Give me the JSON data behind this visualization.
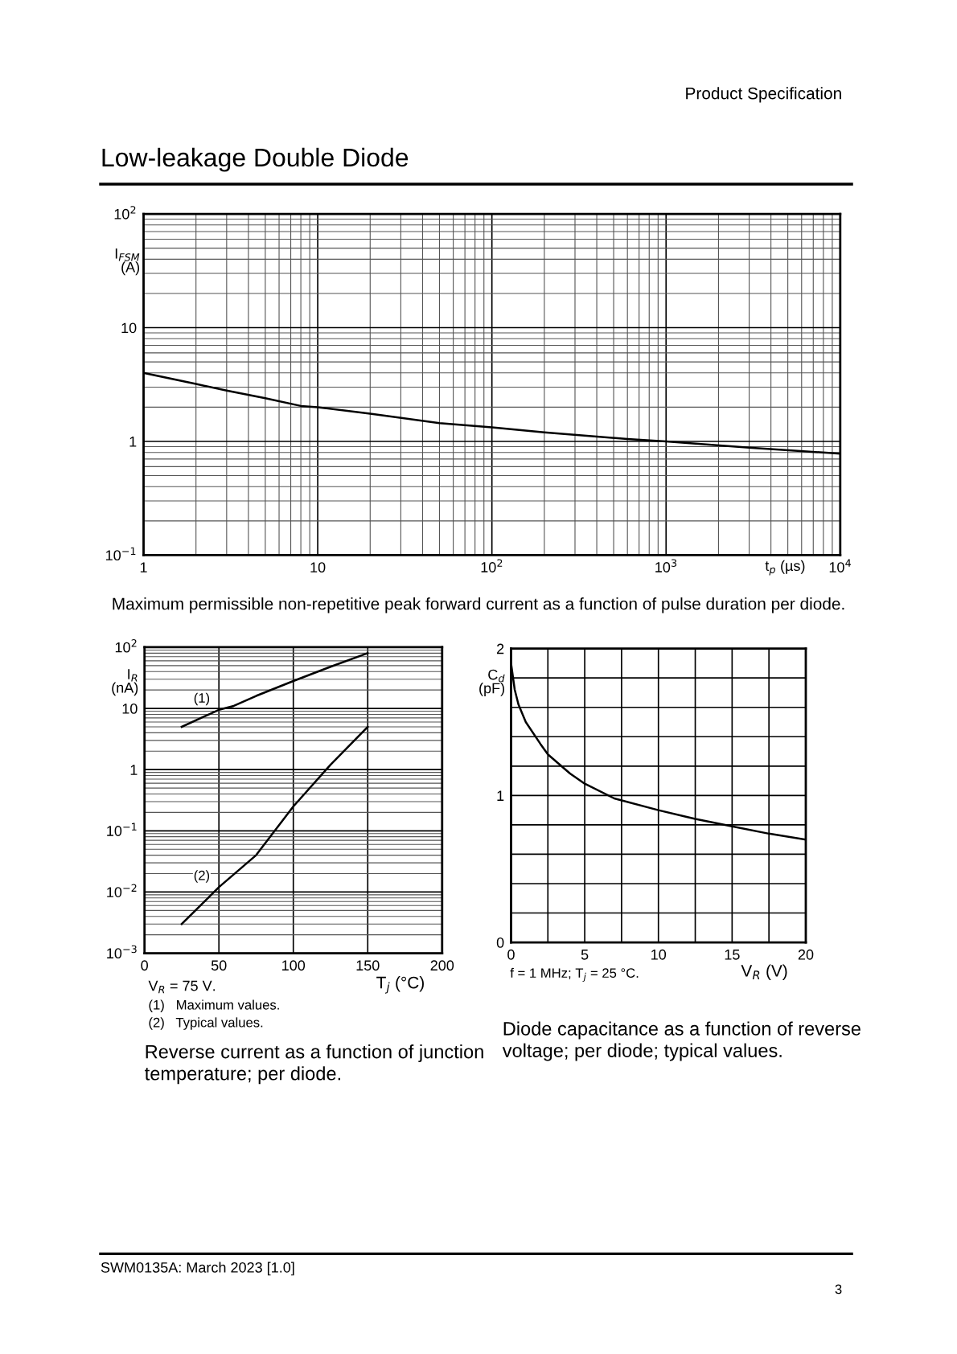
{
  "chart_data": [
    {
      "type": "line",
      "xlabel": "t$_{p}$ (µs)",
      "ylabel": "I$_{FSM}$\n(A)",
      "log": "xy",
      "grid": true,
      "color": "#000000",
      "x": [
        1,
        2,
        3,
        5,
        8,
        10,
        20,
        50,
        100,
        200,
        600,
        1000,
        3000,
        10000
      ],
      "values": [
        4,
        3.2,
        2.8,
        2.4,
        2.05,
        2.0,
        1.75,
        1.45,
        1.33,
        1.2,
        1.05,
        1.0,
        0.88,
        0.78
      ],
      "xlim": [
        1,
        10000
      ],
      "ylim": [
        0.1,
        100
      ],
      "xticks": [
        1,
        10,
        {
          "value": 100,
          "label": "10$^{2}$"
        },
        {
          "value": 1000,
          "label": "10$^{3}$"
        },
        {
          "value": 10000,
          "label": "10$^{4}$"
        }
      ],
      "yticks": [
        {
          "value": 0.1,
          "label": "10$^{−1}$"
        },
        1,
        10,
        {
          "value": 100,
          "label": "10$^{2}$"
        }
      ],
      "annotations": [
        "Maximum permissible non-repetitive peak forward current as a function of pulse duration per diode.",
        "Product Specification",
        "Low-leakage Double Diode",
        "SWM0135A: March 2023 [1.0]",
        "3"
      ]
    },
    {
      "type": "line",
      "xlabel": "T$_{j}$ (°C)",
      "ylabel": "I$_{R}$\n(nA)",
      "log": "y",
      "grid": true,
      "series": [
        {
          "name": "(1)",
          "color": "#000000",
          "x": [
            25,
            50,
            60,
            75,
            100,
            125,
            150
          ],
          "values": [
            5,
            9.5,
            11,
            16,
            28,
            48,
            80
          ]
        },
        {
          "name": "(2)",
          "color": "#000000",
          "x": [
            25,
            50,
            75,
            100,
            125,
            150
          ],
          "values": [
            0.003,
            0.012,
            0.04,
            0.25,
            1.2,
            5
          ]
        }
      ],
      "xlim": [
        0,
        200
      ],
      "ylim": [
        0.001,
        100
      ],
      "xticks": [
        0,
        50,
        100,
        150,
        200
      ],
      "yticks": [
        {
          "value": 0.001,
          "label": "10$^{−3}$"
        },
        {
          "value": 0.01,
          "label": "10$^{−2}$"
        },
        {
          "value": 0.1,
          "label": "10$^{−1}$"
        },
        1,
        10,
        {
          "value": 100,
          "label": "10$^{2}$"
        }
      ],
      "annotations": [
        "V$_{R}$ = 75 V.",
        "(1)   Maximum values.",
        "(2)   Typical values.",
        "Reverse current as a function of junction\ntemperature; per diode."
      ]
    },
    {
      "type": "line",
      "xlabel": "V$_{R}$ (V)",
      "ylabel": "C$_{d}$\n(pF)",
      "grid": true,
      "color": "#000000",
      "x": [
        0,
        0.25,
        0.5,
        1,
        2,
        2.5,
        4,
        5,
        7,
        10,
        12.5,
        15,
        17.5,
        20
      ],
      "values": [
        1.9,
        1.72,
        1.62,
        1.5,
        1.35,
        1.28,
        1.15,
        1.08,
        0.98,
        0.9,
        0.84,
        0.79,
        0.74,
        0.7
      ],
      "xlim": [
        0,
        20
      ],
      "ylim": [
        0,
        2
      ],
      "xticks": [
        0,
        {
          "value": 2.5,
          "label": null
        },
        5,
        {
          "value": 7.5,
          "label": null
        },
        10,
        {
          "value": 12.5,
          "label": null
        },
        15,
        {
          "value": 17.5,
          "label": null
        },
        20
      ],
      "yticks": [
        0,
        {
          "value": 0.2,
          "label": null
        },
        {
          "value": 0.4,
          "label": null
        },
        {
          "value": 0.6,
          "label": null
        },
        {
          "value": 0.8,
          "label": null
        },
        1,
        {
          "value": 1.2,
          "label": null
        },
        {
          "value": 1.4,
          "label": null
        },
        {
          "value": 1.6,
          "label": null
        },
        {
          "value": 1.8,
          "label": null
        },
        2
      ],
      "annotations": [
        "f = 1 MHz; T$_{j}$ = 25 °C.",
        "Diode capacitance as a function of reverse\nvoltage; per diode; typical values."
      ]
    }
  ]
}
